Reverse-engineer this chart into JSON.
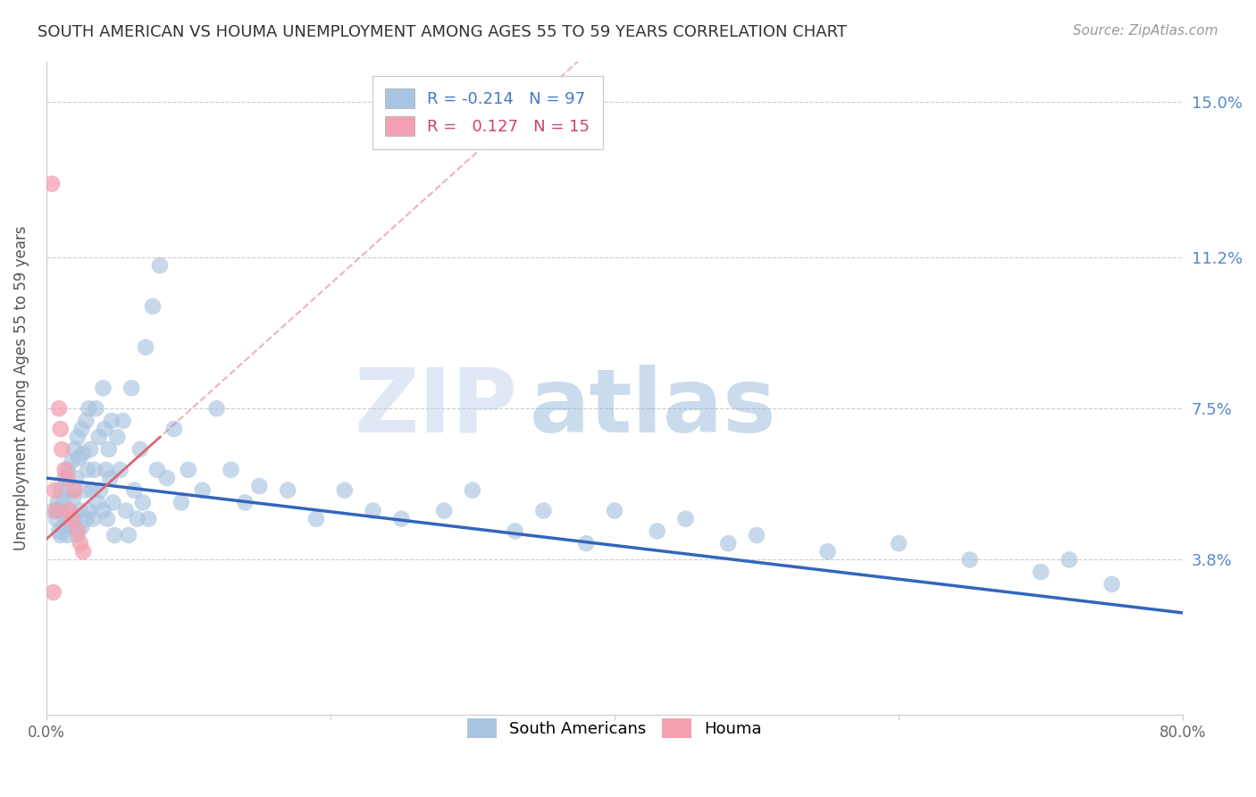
{
  "title": "SOUTH AMERICAN VS HOUMA UNEMPLOYMENT AMONG AGES 55 TO 59 YEARS CORRELATION CHART",
  "source": "Source: ZipAtlas.com",
  "ylabel": "Unemployment Among Ages 55 to 59 years",
  "xlim": [
    0.0,
    0.8
  ],
  "ylim": [
    0.0,
    0.16
  ],
  "yticks": [
    0.0,
    0.038,
    0.075,
    0.112,
    0.15
  ],
  "ytick_labels": [
    "",
    "3.8%",
    "7.5%",
    "11.2%",
    "15.0%"
  ],
  "xticks": [
    0.0,
    0.2,
    0.4,
    0.6,
    0.8
  ],
  "xtick_labels": [
    "0.0%",
    "",
    "",
    "",
    "80.0%"
  ],
  "blue_R": -0.214,
  "blue_N": 97,
  "pink_R": 0.127,
  "pink_N": 15,
  "blue_color": "#a8c4e0",
  "pink_color": "#f4a0b0",
  "blue_line_color": "#3366bb",
  "pink_line_color": "#dd6677",
  "grid_color": "#cccccc",
  "watermark_zip": "ZIP",
  "watermark_atlas": "atlas",
  "legend_label_blue": "South Americans",
  "legend_label_pink": "Houma",
  "blue_scatter_x": [
    0.005,
    0.007,
    0.008,
    0.009,
    0.01,
    0.01,
    0.01,
    0.012,
    0.012,
    0.013,
    0.014,
    0.015,
    0.015,
    0.016,
    0.017,
    0.018,
    0.018,
    0.019,
    0.02,
    0.02,
    0.021,
    0.022,
    0.022,
    0.023,
    0.024,
    0.025,
    0.025,
    0.026,
    0.027,
    0.028,
    0.028,
    0.029,
    0.03,
    0.03,
    0.031,
    0.032,
    0.033,
    0.034,
    0.035,
    0.036,
    0.037,
    0.038,
    0.04,
    0.04,
    0.041,
    0.042,
    0.043,
    0.044,
    0.045,
    0.046,
    0.047,
    0.048,
    0.05,
    0.052,
    0.054,
    0.056,
    0.058,
    0.06,
    0.062,
    0.064,
    0.066,
    0.068,
    0.07,
    0.072,
    0.075,
    0.078,
    0.08,
    0.085,
    0.09,
    0.095,
    0.1,
    0.11,
    0.12,
    0.13,
    0.14,
    0.15,
    0.17,
    0.19,
    0.21,
    0.23,
    0.25,
    0.28,
    0.3,
    0.33,
    0.35,
    0.38,
    0.4,
    0.43,
    0.45,
    0.48,
    0.5,
    0.55,
    0.6,
    0.65,
    0.7,
    0.72,
    0.75
  ],
  "blue_scatter_y": [
    0.05,
    0.048,
    0.052,
    0.045,
    0.055,
    0.05,
    0.044,
    0.052,
    0.046,
    0.058,
    0.048,
    0.06,
    0.044,
    0.055,
    0.05,
    0.062,
    0.046,
    0.053,
    0.065,
    0.048,
    0.058,
    0.068,
    0.044,
    0.063,
    0.05,
    0.07,
    0.046,
    0.064,
    0.055,
    0.072,
    0.048,
    0.06,
    0.075,
    0.05,
    0.065,
    0.055,
    0.048,
    0.06,
    0.075,
    0.052,
    0.068,
    0.055,
    0.08,
    0.05,
    0.07,
    0.06,
    0.048,
    0.065,
    0.058,
    0.072,
    0.052,
    0.044,
    0.068,
    0.06,
    0.072,
    0.05,
    0.044,
    0.08,
    0.055,
    0.048,
    0.065,
    0.052,
    0.09,
    0.048,
    0.1,
    0.06,
    0.11,
    0.058,
    0.07,
    0.052,
    0.06,
    0.055,
    0.075,
    0.06,
    0.052,
    0.056,
    0.055,
    0.048,
    0.055,
    0.05,
    0.048,
    0.05,
    0.055,
    0.045,
    0.05,
    0.042,
    0.05,
    0.045,
    0.048,
    0.042,
    0.044,
    0.04,
    0.042,
    0.038,
    0.035,
    0.038,
    0.032
  ],
  "pink_scatter_x": [
    0.004,
    0.006,
    0.007,
    0.009,
    0.01,
    0.011,
    0.013,
    0.015,
    0.016,
    0.018,
    0.02,
    0.022,
    0.024,
    0.026,
    0.005
  ],
  "pink_scatter_y": [
    0.13,
    0.055,
    0.05,
    0.075,
    0.07,
    0.065,
    0.06,
    0.058,
    0.05,
    0.048,
    0.055,
    0.045,
    0.042,
    0.04,
    0.03
  ],
  "blue_line_x0": 0.0,
  "blue_line_y0": 0.058,
  "blue_line_x1": 0.8,
  "blue_line_y1": 0.025,
  "pink_line_x0": 0.0,
  "pink_line_y0": 0.043,
  "pink_line_x1": 0.08,
  "pink_line_y1": 0.068
}
